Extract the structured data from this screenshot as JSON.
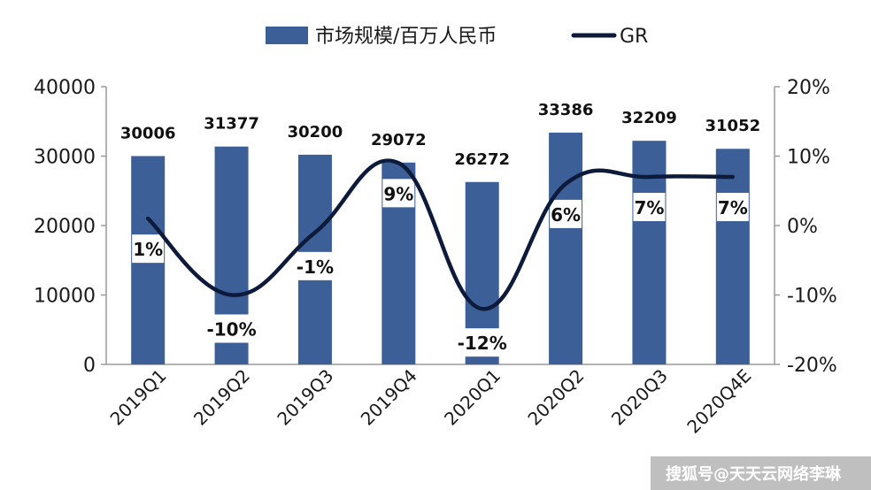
{
  "chart_data": {
    "type": "bar",
    "categories": [
      "2019Q1",
      "2019Q2",
      "2019Q3",
      "2019Q4",
      "2020Q1",
      "2020Q2",
      "2020Q3",
      "2020Q4E"
    ],
    "series": [
      {
        "name": "市场规模/百万人民币",
        "kind": "bar",
        "axis": "left",
        "color": "#3c5f98",
        "values": [
          30006,
          31377,
          30200,
          29072,
          26272,
          33386,
          32209,
          31052
        ],
        "labels": [
          "30006",
          "31377",
          "30200",
          "29072",
          "26272",
          "33386",
          "32209",
          "31052"
        ]
      },
      {
        "name": "GR",
        "kind": "line",
        "axis": "right",
        "color": "#0d1a3a",
        "values": [
          1,
          -10,
          -1,
          9,
          -12,
          6,
          7,
          7
        ],
        "labels": [
          "1%",
          "-10%",
          "-1%",
          "9%",
          "-12%",
          "6%",
          "7%",
          "7%"
        ]
      }
    ],
    "ylim_left": [
      0,
      40000
    ],
    "ylim_right": [
      -20,
      20
    ],
    "left_ticks": [
      "0",
      "10000",
      "20000",
      "30000",
      "40000"
    ],
    "right_ticks": [
      "-20%",
      "-10%",
      "0%",
      "10%",
      "20%"
    ],
    "legend": {
      "position": "top"
    },
    "grid": false
  },
  "watermark": "搜狐号@天天云网络李琳"
}
